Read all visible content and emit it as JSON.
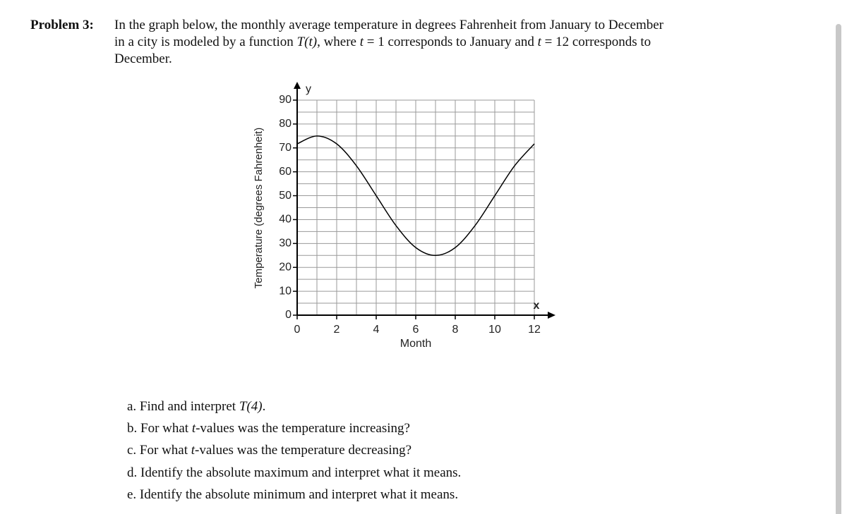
{
  "problem": {
    "label": "Problem 3:",
    "lines": [
      [
        "In the graph below, the monthly average temperature in degrees Fahrenheit from January to December"
      ],
      [
        "in a city is modeled by a function ",
        "T(t)",
        ", where ",
        "t",
        " = 1 corresponds to January and ",
        "t",
        " = 12 corresponds to"
      ],
      [
        "December."
      ]
    ]
  },
  "chart_data": {
    "type": "line",
    "xlabel": "Month",
    "ylabel": "Temperature (degrees Fahrenheit)",
    "x_axis_letter": "x",
    "y_axis_letter": "y",
    "x": [
      0,
      1,
      2,
      3,
      4,
      5,
      6,
      7,
      8,
      9,
      10,
      11,
      12
    ],
    "values": [
      71.7,
      75,
      71.7,
      62.5,
      50,
      37.5,
      28.3,
      25,
      28.3,
      37.5,
      50,
      62.5,
      71.7
    ],
    "color": "#000000",
    "xlim": [
      0,
      12
    ],
    "ylim": [
      0,
      90
    ],
    "xticks": [
      0,
      2,
      4,
      6,
      8,
      10,
      12
    ],
    "yticks": [
      0,
      10,
      20,
      30,
      40,
      50,
      60,
      70,
      80,
      90
    ],
    "xgrid": [
      0,
      1,
      2,
      3,
      4,
      5,
      6,
      7,
      8,
      9,
      10,
      11,
      12
    ],
    "ygrid": [
      0,
      5,
      10,
      15,
      20,
      25,
      30,
      35,
      40,
      45,
      50,
      55,
      60,
      65,
      70,
      75,
      80,
      85,
      90
    ],
    "grid": true
  },
  "questions": [
    [
      "a. Find and interpret ",
      "T(4)",
      "."
    ],
    [
      "b. For what ",
      "t",
      "-values was the temperature increasing?"
    ],
    [
      "c. For what ",
      "t",
      "-values was the temperature decreasing?"
    ],
    [
      "d. Identify the absolute maximum and interpret what it means."
    ],
    [
      "e. Identify the absolute minimum and interpret what it means."
    ]
  ]
}
